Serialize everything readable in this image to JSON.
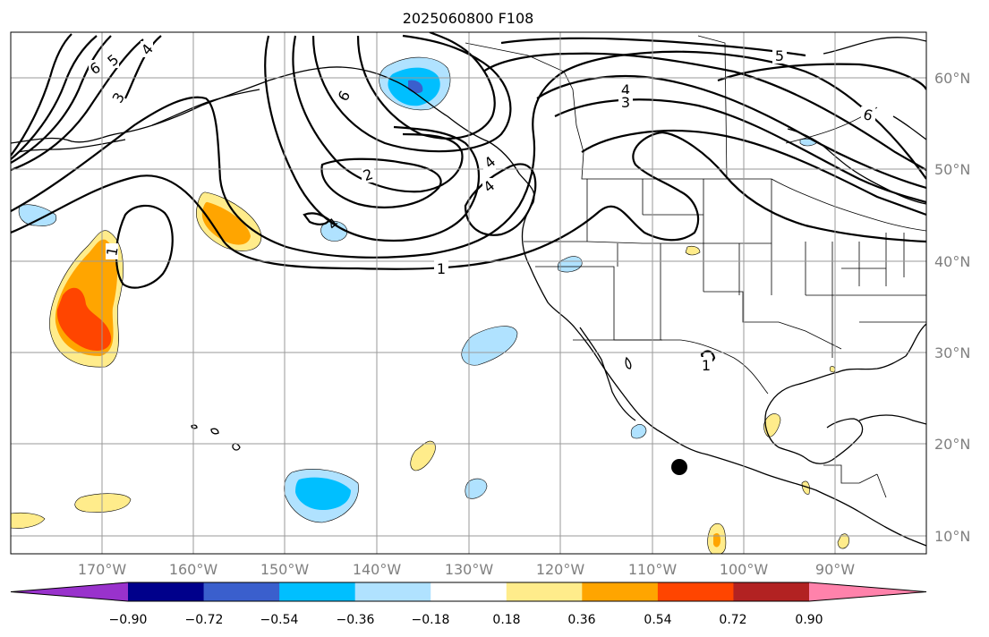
{
  "title": "2025060800 F108",
  "latitude_labels": [
    "60°N",
    "50°N",
    "40°N",
    "30°N",
    "20°N",
    "10°N"
  ],
  "longitude_labels": [
    "170°W",
    "160°W",
    "150°W",
    "140°W",
    "130°W",
    "120°W",
    "110°W",
    "100°W",
    "90°W"
  ],
  "contour_labels": [
    "6",
    "5",
    "4",
    "3",
    "6",
    "2",
    "4",
    "4",
    "4",
    "5",
    "4",
    "3",
    "6",
    "1",
    "1",
    "1"
  ],
  "colorbar": {
    "colors": [
      "#9932cc",
      "#00008b",
      "#3a5fcd",
      "#00bfff",
      "#b0e2ff",
      "#ffffff",
      "#ffec8b",
      "#ffa500",
      "#ff4500",
      "#b22222",
      "#ff82ab"
    ],
    "tick_labels": [
      "−0.90",
      "−0.72",
      "−0.54",
      "−0.36",
      "−0.18",
      "0.18",
      "0.36",
      "0.54",
      "0.72",
      "0.90"
    ]
  },
  "colors": {
    "grid": "#9a9a9a",
    "axis_text": "#808080",
    "contour": "#000000"
  }
}
